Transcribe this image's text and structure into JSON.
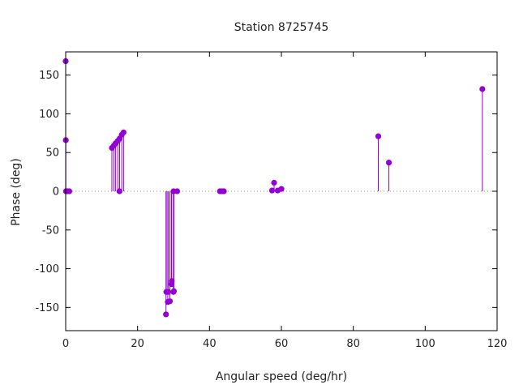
{
  "chart_data": {
    "type": "scatter",
    "style": "impulse",
    "title": "Station 8725745",
    "xlabel": "Angular speed (deg/hr)",
    "ylabel": "Phase (deg)",
    "xlim": [
      0,
      120
    ],
    "ylim": [
      -180,
      180
    ],
    "xticks": [
      0,
      20,
      40,
      60,
      80,
      100,
      120
    ],
    "yticks": [
      -150,
      -100,
      -50,
      0,
      50,
      100,
      150
    ],
    "zero_line": "dotted",
    "grid": false,
    "color": "#9400d3",
    "points": [
      {
        "x": 0.0,
        "y": 168
      },
      {
        "x": 0.04,
        "y": 66
      },
      {
        "x": 0.08,
        "y": 0
      },
      {
        "x": 0.5,
        "y": 0
      },
      {
        "x": 1.0,
        "y": 0
      },
      {
        "x": 12.85,
        "y": 56
      },
      {
        "x": 13.4,
        "y": 59
      },
      {
        "x": 13.9,
        "y": 62
      },
      {
        "x": 14.5,
        "y": 65
      },
      {
        "x": 14.95,
        "y": 0
      },
      {
        "x": 15.0,
        "y": 68
      },
      {
        "x": 15.6,
        "y": 73
      },
      {
        "x": 16.1,
        "y": 76
      },
      {
        "x": 27.9,
        "y": -159
      },
      {
        "x": 28.0,
        "y": -130
      },
      {
        "x": 28.4,
        "y": -143
      },
      {
        "x": 28.5,
        "y": -130
      },
      {
        "x": 28.98,
        "y": -142
      },
      {
        "x": 29.4,
        "y": -120
      },
      {
        "x": 29.5,
        "y": -116
      },
      {
        "x": 29.96,
        "y": -130
      },
      {
        "x": 30.0,
        "y": 0
      },
      {
        "x": 30.1,
        "y": -129
      },
      {
        "x": 31.0,
        "y": 0
      },
      {
        "x": 42.9,
        "y": 0
      },
      {
        "x": 43.5,
        "y": 0
      },
      {
        "x": 44.0,
        "y": 0
      },
      {
        "x": 57.4,
        "y": 1
      },
      {
        "x": 57.97,
        "y": 11
      },
      {
        "x": 58.98,
        "y": 1
      },
      {
        "x": 60.0,
        "y": 3
      },
      {
        "x": 86.95,
        "y": 71
      },
      {
        "x": 89.9,
        "y": 37
      },
      {
        "x": 115.9,
        "y": 132
      }
    ]
  }
}
